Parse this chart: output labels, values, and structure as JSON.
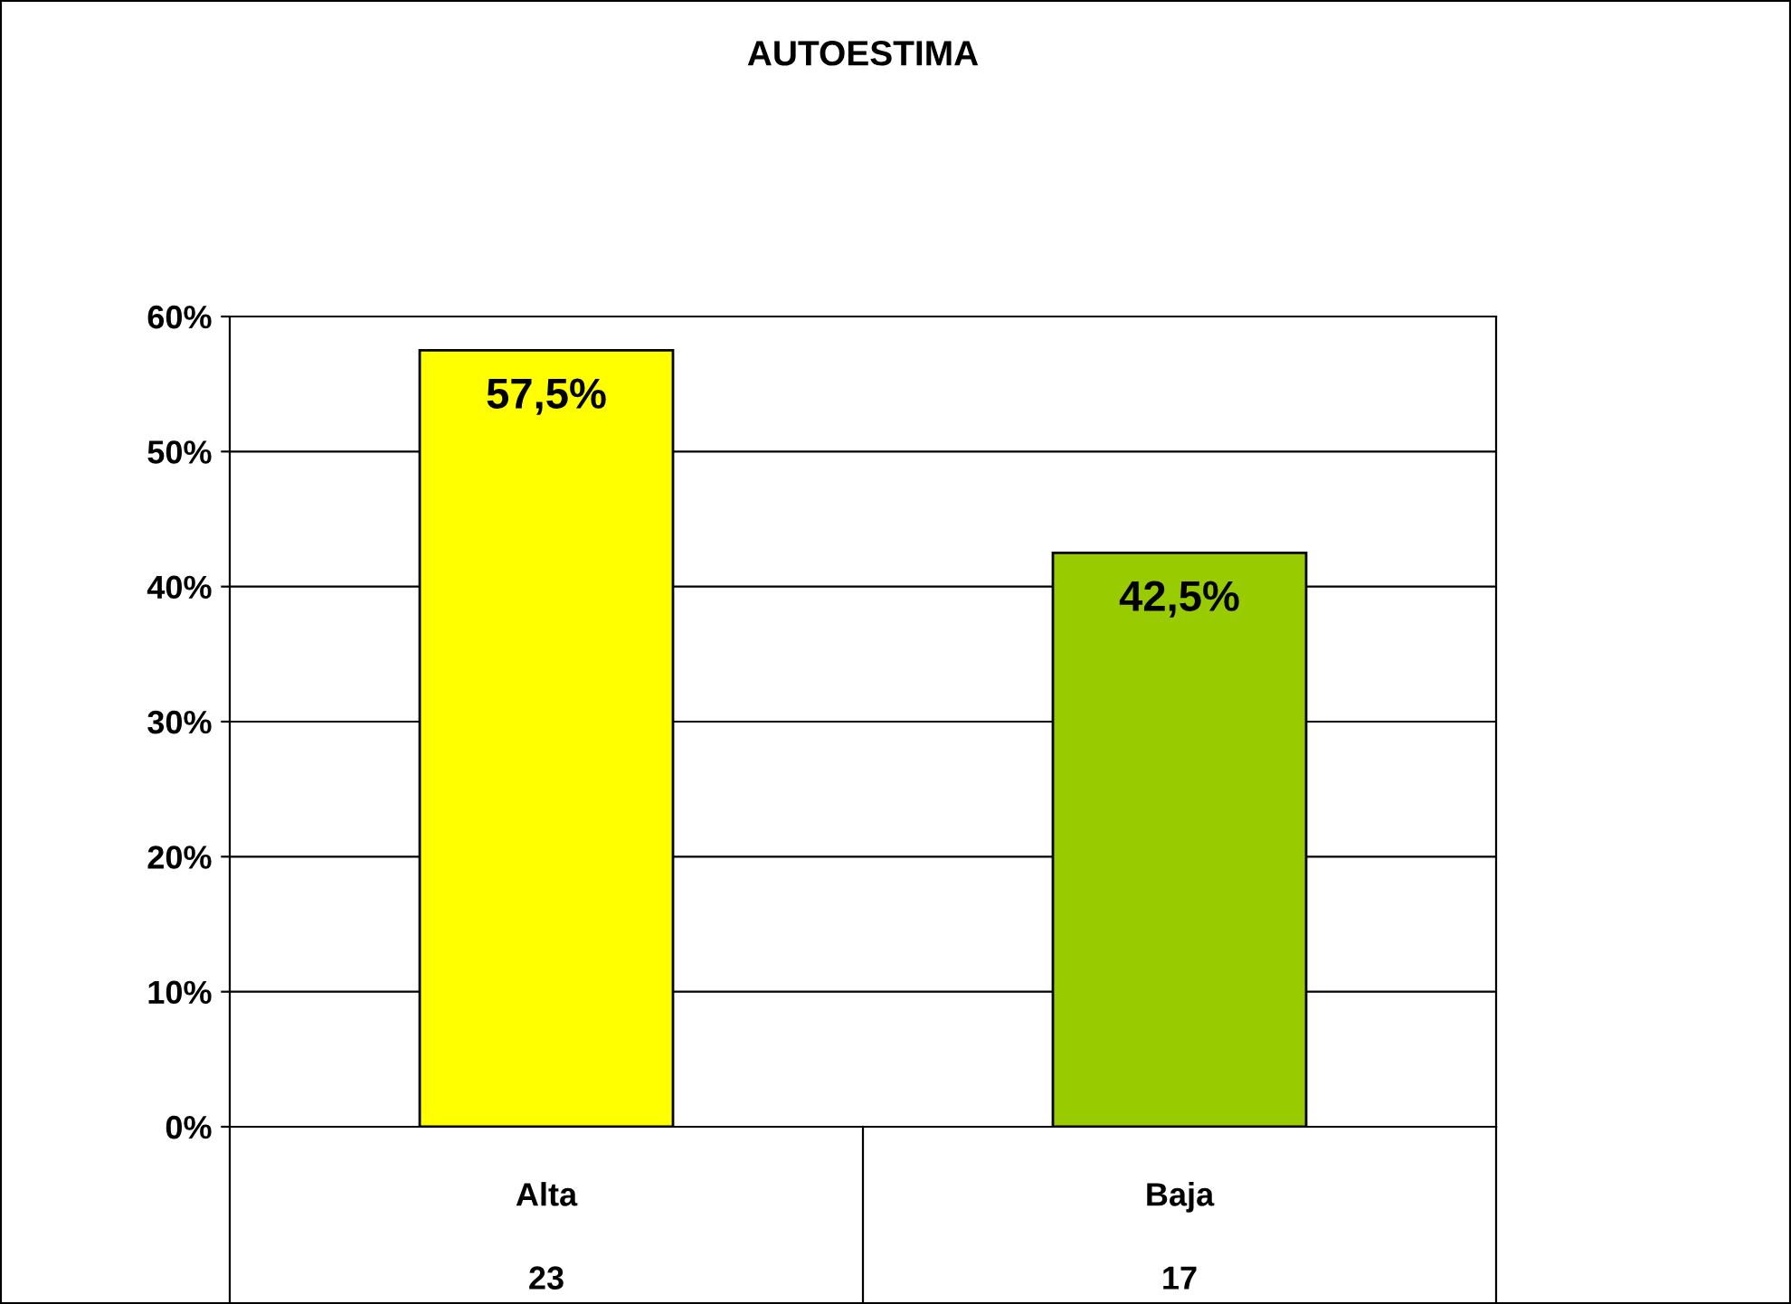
{
  "chart_data": {
    "type": "bar",
    "title": "AUTOESTIMA",
    "categories": [
      "Alta",
      "Baja"
    ],
    "values": [
      57.5,
      42.5
    ],
    "colors": [
      "#ffff00",
      "#99cc00"
    ],
    "value_labels": [
      "57,5%",
      "42,5%"
    ],
    "ylim": [
      0,
      60
    ],
    "yticks": [
      {
        "value": 0,
        "label": "0%"
      },
      {
        "value": 10,
        "label": "10%"
      },
      {
        "value": 20,
        "label": "20%"
      },
      {
        "value": 30,
        "label": "30%"
      },
      {
        "value": 40,
        "label": "40%"
      },
      {
        "value": 50,
        "label": "50%"
      },
      {
        "value": 60,
        "label": "60%"
      }
    ],
    "grid": "y",
    "annotations": [
      "23",
      "17"
    ]
  }
}
